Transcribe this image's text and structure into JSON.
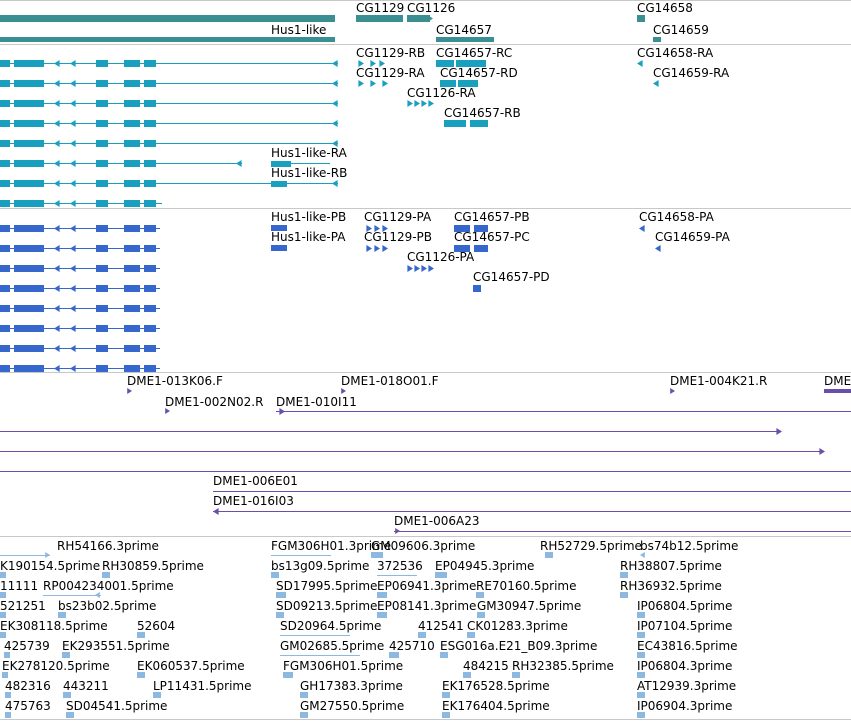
{
  "colors": {
    "gene": "#3a8f92",
    "mrna": "#1aa0bf",
    "protein": "#3567cc",
    "clone": "#6a4fa8",
    "est": "#8db8df",
    "divider": "#c8c8c8"
  },
  "tracks": {
    "gene": {
      "labels": [
        "CG1129",
        "CG1126",
        "CG14658",
        "Hus1-like",
        "CG14657",
        "CG14659"
      ]
    },
    "mrna": {
      "labels": [
        "CG1129-RB",
        "CG14657-RC",
        "CG14658-RA",
        "CG1129-RA",
        "CG14657-RD",
        "CG14659-RA",
        "CG1126-RA",
        "CG14657-RB",
        "Hus1-like-RA",
        "Hus1-like-RB"
      ]
    },
    "protein": {
      "labels": [
        "Hus1-like-PB",
        "CG1129-PA",
        "CG14657-PB",
        "CG14658-PA",
        "Hus1-like-PA",
        "CG1129-PB",
        "CG14657-PC",
        "CG14659-PA",
        "CG1126-PA",
        "CG14657-PD"
      ]
    },
    "clone": {
      "labels": [
        "DME1-013K06.F",
        "DME1-018O01.F",
        "DME1-004K21.R",
        "DME",
        "DME1-002N02.R",
        "DME1-010I11",
        "DME1-006E01",
        "DME1-016I03",
        "DME1-006A23"
      ]
    },
    "est": {
      "labels": [
        "RH54166.3prime",
        "FGM306H01.3prime",
        "GM09606.3prime",
        "RH52729.5prime",
        "bs74b12.5prime",
        "K190154.5prime",
        "RH30859.5prime",
        "bs13g09.5prime",
        "372536",
        "EP04945.3prime",
        "RH38807.5prime",
        "11111",
        "RP004234001.5prime",
        "SD17995.5prime",
        "EP06941.3prime",
        "RE70160.5prime",
        "RH36932.5prime",
        "521251",
        "bs23b02.5prime",
        "SD09213.5prime",
        "EP08141.3prime",
        "GM30947.5prime",
        "IP06804.5prime",
        "EK308118.5prime",
        "52604",
        "SD20964.5prime",
        "412541",
        "CK01283.3prime",
        "IP07104.5prime",
        "425739",
        "EK293551.5prime",
        "GM02685.5prime",
        "425710",
        "ESG016a.E21_B09.3prime",
        "EC43816.5prime",
        "EK278120.5prime",
        "EK060537.5prime",
        "FGM306H01.5prime",
        "484215",
        "RH32385.5prime",
        "IP06804.3prime",
        "482316",
        "443211",
        "LP11431.5prime",
        "GH17383.3prime",
        "EK176528.5prime",
        "AT12939.3prime",
        "475763",
        "SD04541.5prime",
        "GM27550.5prime",
        "EK176404.5prime",
        "IP06904.3prime"
      ]
    }
  }
}
